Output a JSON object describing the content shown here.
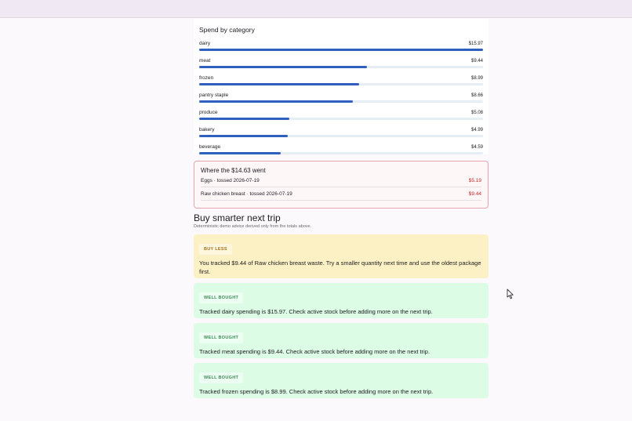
{
  "spend": {
    "title": "Spend by category",
    "categories": [
      {
        "name": "dairy",
        "amount": "$15.97",
        "fraction": 1.0
      },
      {
        "name": "meat",
        "amount": "$9.44",
        "fraction": 0.591
      },
      {
        "name": "frozen",
        "amount": "$8.99",
        "fraction": 0.563
      },
      {
        "name": "pantry staple",
        "amount": "$8.66",
        "fraction": 0.542
      },
      {
        "name": "produce",
        "amount": "$5.08",
        "fraction": 0.318
      },
      {
        "name": "bakery",
        "amount": "$4.99",
        "fraction": 0.312
      },
      {
        "name": "beverage",
        "amount": "$4.59",
        "fraction": 0.287
      }
    ],
    "bar_color": "#2f5fbf"
  },
  "waste": {
    "title": "Where the $14.63 went",
    "items": [
      {
        "label": "Eggs · tossed 2026-07-19",
        "amount": "$5.19"
      },
      {
        "label": "Raw chicken breast · tossed 2026-07-19",
        "amount": "$9.44"
      }
    ]
  },
  "advice": {
    "title": "Buy smarter next trip",
    "subtitle": "Deterministic demo advice derived only from the totals above.",
    "cards": [
      {
        "tone": "warn",
        "badge": "BUY LESS",
        "text": "You tracked $9.44 of Raw chicken breast waste. Try a smaller quantity next time and use the oldest package first."
      },
      {
        "tone": "good",
        "badge": "WELL BOUGHT",
        "text": "Tracked dairy spending is $15.97. Check active stock before adding more on the next trip."
      },
      {
        "tone": "good",
        "badge": "WELL BOUGHT",
        "text": "Tracked meat spending is $9.44. Check active stock before adding more on the next trip."
      },
      {
        "tone": "good",
        "badge": "WELL BOUGHT",
        "text": "Tracked frozen spending is $8.99. Check active stock before adding more on the next trip."
      }
    ]
  }
}
